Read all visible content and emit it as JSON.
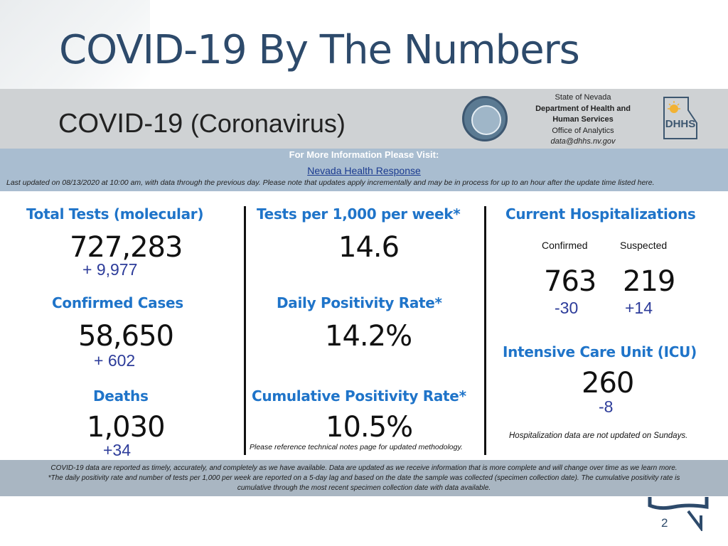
{
  "slide": {
    "title": "COVID-19 By The Numbers",
    "page_number": "2"
  },
  "header": {
    "title_main": "COVID-19",
    "title_sub": "(Coronavirus)",
    "agency": {
      "line1": "State of Nevada",
      "line2": "Department of Health and",
      "line3": "Human Services",
      "line4": "Office of Analytics",
      "line5": "data@dhhs.nv.gov"
    },
    "logo_text": "DHHS"
  },
  "info": {
    "visit": "For More Information Please Visit:",
    "link": "Nevada Health Response",
    "updated": "Last updated on 08/13/2020 at 10:00 am, with data through the previous day.  Please note that updates apply incrementally and may be in process for up to an hour after the update time listed here."
  },
  "col1": {
    "tests_label": "Total Tests (molecular)",
    "tests_value": "727,283",
    "tests_delta": "+  9,977",
    "cases_label": "Confirmed Cases",
    "cases_value": "58,650",
    "cases_delta": "+ 602",
    "deaths_label": "Deaths",
    "deaths_value": "1,030",
    "deaths_delta": "+34"
  },
  "col2": {
    "tpt_label": "Tests per 1,000 per week*",
    "tpt_value": "14.6",
    "daily_label": "Daily Positivity Rate*",
    "daily_value": "14.2%",
    "cum_label": "Cumulative Positivity Rate*",
    "cum_value": "10.5%",
    "note": "Please reference technical notes page for updated methodology."
  },
  "col3": {
    "hosp_label": "Current Hospitalizations",
    "confirmed_label": "Confirmed",
    "suspected_label": "Suspected",
    "confirmed_value": "763",
    "suspected_value": "219",
    "confirmed_delta": "-30",
    "suspected_delta": "+14",
    "icu_label": "Intensive Care Unit (ICU)",
    "icu_value": "260",
    "icu_delta": "-8",
    "note": "Hospitalization data are not updated on Sundays."
  },
  "footer": {
    "line1": "COVID-19 data are reported as timely, accurately, and completely as we have available.  Data are updated as we receive information that is more complete and will change over time as we learn more.",
    "line2": "*The daily positivity rate and number of tests per 1,000 per week are reported on a 5-day lag and based on the date the sample was collected (specimen collection date).  The cumulative positivity rate is",
    "line3": "cumulative through the most recent specimen collection date with data available."
  }
}
